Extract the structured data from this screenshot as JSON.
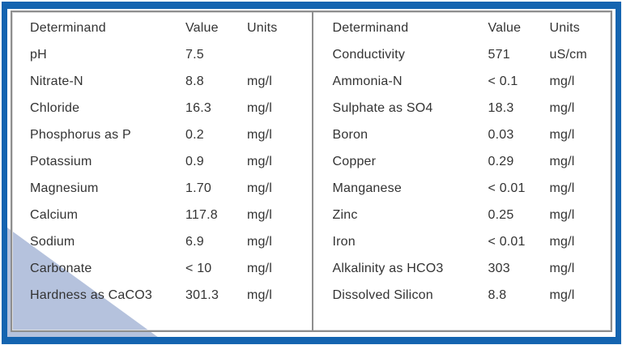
{
  "page": {
    "description": "Water analysis results table"
  },
  "colors": {
    "frame_blue": "#1464b0",
    "table_border_gray": "#8e8e8e",
    "triangle_light_blue": "#b5c2dd",
    "text": "#333333",
    "background": "#ffffff"
  },
  "tables": {
    "left": {
      "headers": [
        "Determinand",
        "Value",
        "Units"
      ],
      "rows": [
        {
          "determinand": "pH",
          "value": "7.5",
          "units": ""
        },
        {
          "determinand": "Nitrate-N",
          "value": "8.8",
          "units": "mg/l"
        },
        {
          "determinand": "Chloride",
          "value": "16.3",
          "units": "mg/l"
        },
        {
          "determinand": "Phosphorus as P",
          "value": "0.2",
          "units": "mg/l"
        },
        {
          "determinand": "Potassium",
          "value": "0.9",
          "units": "mg/l"
        },
        {
          "determinand": "Magnesium",
          "value": "1.70",
          "units": "mg/l"
        },
        {
          "determinand": "Calcium",
          "value": "117.8",
          "units": "mg/l"
        },
        {
          "determinand": "Sodium",
          "value": "6.9",
          "units": "mg/l"
        },
        {
          "determinand": "Carbonate",
          "value": "< 10",
          "units": "mg/l"
        },
        {
          "determinand": "Hardness as CaCO3",
          "value": "301.3",
          "units": "mg/l"
        }
      ]
    },
    "right": {
      "headers": [
        "Determinand",
        "Value",
        "Units"
      ],
      "rows": [
        {
          "determinand": "Conductivity",
          "value": "571",
          "units": "uS/cm"
        },
        {
          "determinand": "Ammonia-N",
          "value": "< 0.1",
          "units": "mg/l"
        },
        {
          "determinand": "Sulphate as SO4",
          "value": "18.3",
          "units": "mg/l"
        },
        {
          "determinand": "Boron",
          "value": "0.03",
          "units": "mg/l"
        },
        {
          "determinand": "Copper",
          "value": "0.29",
          "units": "mg/l"
        },
        {
          "determinand": "Manganese",
          "value": "< 0.01",
          "units": "mg/l"
        },
        {
          "determinand": "Zinc",
          "value": "0.25",
          "units": "mg/l"
        },
        {
          "determinand": "Iron",
          "value": "< 0.01",
          "units": "mg/l"
        },
        {
          "determinand": "Alkalinity as HCO3",
          "value": "303",
          "units": "mg/l"
        },
        {
          "determinand": "Dissolved Silicon",
          "value": "8.8",
          "units": "mg/l"
        }
      ]
    }
  }
}
